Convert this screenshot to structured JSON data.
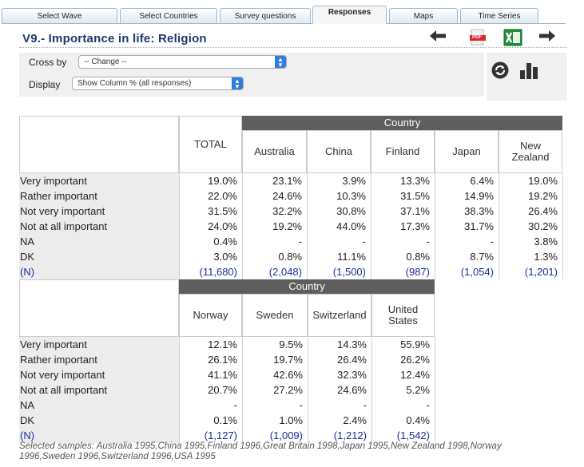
{
  "tabs": [
    {
      "label": "Select Wave"
    },
    {
      "label": "Select Countries"
    },
    {
      "label": "Survey questions"
    },
    {
      "label": "Responses"
    },
    {
      "label": "Maps"
    },
    {
      "label": "Time Series"
    }
  ],
  "title": "V9.- Importance in life: Religion",
  "icons": {
    "back": "arrow-left-icon",
    "pdf": "pdf-icon",
    "excel": "excel-icon",
    "forward": "arrow-right-icon",
    "refresh": "refresh-icon",
    "chart": "bar-chart-icon"
  },
  "pdf_label": "PDF",
  "controls": {
    "cross_by_label": "Cross by",
    "cross_by_value": "-- Change --",
    "display_label": "Display",
    "display_value": "Show Column % (all responses)"
  },
  "table1": {
    "group_header": "Country",
    "columns": [
      "TOTAL",
      "Australia",
      "China",
      "Finland",
      "Japan",
      "New Zealand"
    ],
    "rows": [
      {
        "label": "Very important",
        "values": [
          "19.0%",
          "23.1%",
          "3.9%",
          "13.3%",
          "6.4%",
          "19.0%"
        ]
      },
      {
        "label": "Rather important",
        "values": [
          "22.0%",
          "24.6%",
          "10.3%",
          "31.5%",
          "14.9%",
          "19.2%"
        ]
      },
      {
        "label": "Not very important",
        "values": [
          "31.5%",
          "32.2%",
          "30.8%",
          "37.1%",
          "38.3%",
          "26.4%"
        ]
      },
      {
        "label": "Not at all important",
        "values": [
          "24.0%",
          "19.2%",
          "44.0%",
          "17.3%",
          "31.7%",
          "30.2%"
        ]
      },
      {
        "label": "NA",
        "values": [
          "0.4%",
          "-",
          "-",
          "-",
          "-",
          "3.8%"
        ]
      },
      {
        "label": "DK",
        "values": [
          "3.0%",
          "0.8%",
          "11.1%",
          "0.8%",
          "8.7%",
          "1.3%"
        ]
      },
      {
        "label": "(N)",
        "values": [
          "(11,680)",
          "(2,048)",
          "(1,500)",
          "(987)",
          "(1,054)",
          "(1,201)"
        ]
      }
    ]
  },
  "table2": {
    "group_header": "Country",
    "columns": [
      "Norway",
      "Sweden",
      "Switzerland",
      "United States"
    ],
    "rows": [
      {
        "label": "Very important",
        "values": [
          "12.1%",
          "9.5%",
          "14.3%",
          "55.9%"
        ]
      },
      {
        "label": "Rather important",
        "values": [
          "26.1%",
          "19.7%",
          "26.4%",
          "26.2%"
        ]
      },
      {
        "label": "Not very important",
        "values": [
          "41.1%",
          "42.6%",
          "32.3%",
          "12.4%"
        ]
      },
      {
        "label": "Not at all important",
        "values": [
          "20.7%",
          "27.2%",
          "24.6%",
          "5.2%"
        ]
      },
      {
        "label": "NA",
        "values": [
          "-",
          "-",
          "-",
          "-"
        ]
      },
      {
        "label": "DK",
        "values": [
          "0.1%",
          "1.0%",
          "2.4%",
          "0.4%"
        ]
      },
      {
        "label": "(N)",
        "values": [
          "(1,127)",
          "(1,009)",
          "(1,212)",
          "(1,542)"
        ]
      }
    ]
  },
  "footer": "Selected samples: Australia 1995,China 1995,Finland 1996,Great Britain 1998,Japan 1995,New Zealand 1998,Norway 1996,Sweden 1996,Switzerland 1996,USA 1995"
}
